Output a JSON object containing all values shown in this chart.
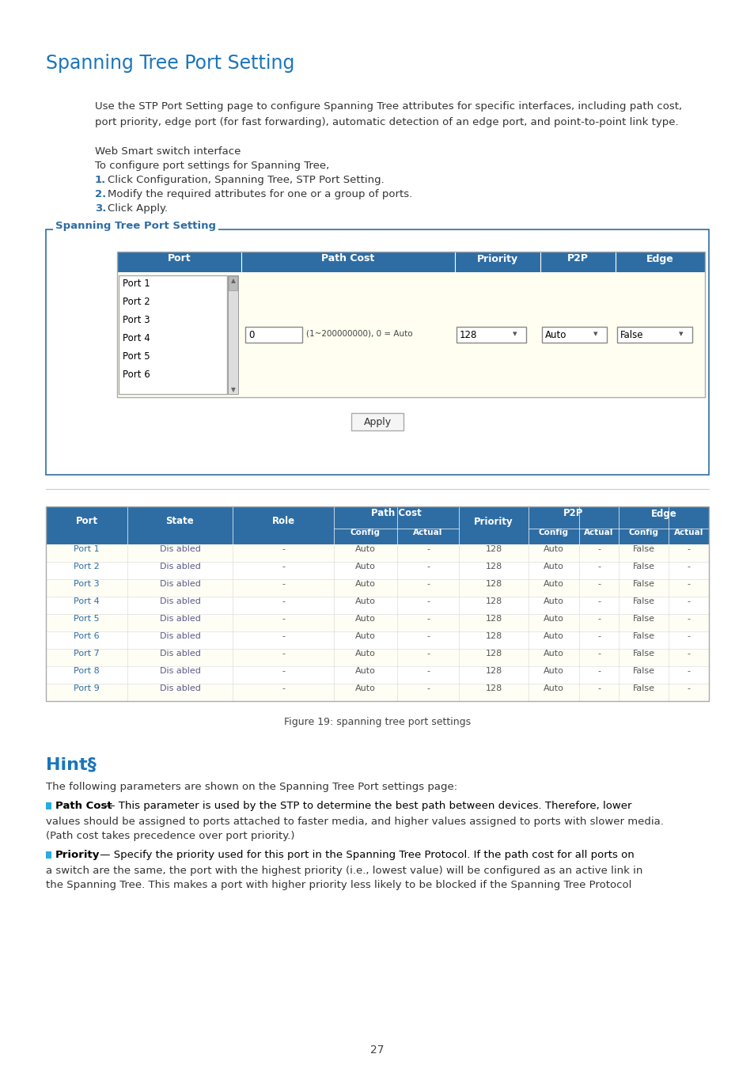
{
  "title": "Spanning Tree Port Setting",
  "hint_title": "Hint§",
  "bg_color": "#ffffff",
  "title_color": "#1a75bc",
  "hint_color": "#1a75bc",
  "blue_header": "#2e6da4",
  "text_color": "#333333",
  "blue_bullet": "#29abe2",
  "section_box_border": "#2e6da4",
  "section_box_label_color": "#2e6da4",
  "body_text_1": "Use the STP Port Setting page to configure Spanning Tree attributes for specific interfaces, including path cost,",
  "body_text_2": "port priority, edge port (for fast forwarding), automatic detection of an edge port, and point-to-point link type.",
  "body_text_3": "Web Smart switch interface",
  "body_text_4": "To configure port settings for Spanning Tree,",
  "step1": "Click Configuration, Spanning Tree, STP Port Setting.",
  "step2": "Modify the required attributes for one or a group of ports.",
  "step3": "Click Apply.",
  "figure_caption": "Figure 19: spanning tree port settings",
  "hint_para1": "The following parameters are shown on the Spanning Tree Port settings page:",
  "hint_path_cost_bold": "Path Cost",
  "hint_path_cost_text": " — This parameter is used by the STP to determine the best path between devices. Therefore, lower",
  "hint_path_cost_text2": "values should be assigned to ports attached to faster media, and higher values assigned to ports with slower media.",
  "hint_path_cost_text3": "(Path cost takes precedence over port priority.)",
  "hint_priority_bold": "Priority",
  "hint_priority_text": " — Specify the priority used for this port in the Spanning Tree Protocol. If the path cost for all ports on",
  "hint_priority_text2": "a switch are the same, the port with the highest priority (i.e., lowest value) will be configured as an active link in",
  "hint_priority_text3": "the Spanning Tree. This makes a port with higher priority less likely to be blocked if the Spanning Tree Protocol",
  "page_number": "27",
  "config_panel_label": "Spanning Tree Port Setting",
  "config_port_list": [
    "Port 1",
    "Port 2",
    "Port 3",
    "Port 4",
    "Port 5",
    "Port 6"
  ],
  "config_headers": [
    "Port",
    "Path Cost",
    "Priority",
    "P2P",
    "Edge"
  ],
  "config_path_cost_hint": "(1~200000000), 0 = Auto",
  "config_priority_val": "128",
  "config_p2p_val": "Auto",
  "config_edge_val": "False",
  "config_apply_btn": "Apply",
  "data_table_ports": [
    "Port 1",
    "Port 2",
    "Port 3",
    "Port 4",
    "Port 5",
    "Port 6",
    "Port 7",
    "Port 8",
    "Port 9"
  ],
  "data_table_states": [
    "Dis abled",
    "Dis abled",
    "Dis abled",
    "Dis abled",
    "Dis abled",
    "Dis abled",
    "Dis abled",
    "Dis abled",
    "Dis abled"
  ],
  "data_table_roles": [
    "-",
    "-",
    "-",
    "-",
    "-",
    "-",
    "-",
    "-",
    "-"
  ],
  "data_table_config": [
    "Auto",
    "Auto",
    "Auto",
    "Auto",
    "Auto",
    "Auto",
    "Auto",
    "Auto",
    "Auto"
  ],
  "data_table_actual": [
    "-",
    "-",
    "-",
    "-",
    "-",
    "-",
    "-",
    "-",
    "-"
  ],
  "data_table_priority": [
    "128",
    "128",
    "128",
    "128",
    "128",
    "128",
    "128",
    "128",
    "128"
  ],
  "data_table_p2p_config": [
    "Auto",
    "Auto",
    "Auto",
    "Auto",
    "Auto",
    "Auto",
    "Auto",
    "Auto",
    "Auto"
  ],
  "data_table_p2p_actual": [
    "-",
    "-",
    "-",
    "-",
    "-",
    "-",
    "-",
    "-",
    "-"
  ],
  "data_table_edge_config": [
    "False",
    "False",
    "False",
    "False",
    "False",
    "False",
    "False",
    "False",
    "False"
  ],
  "data_table_edge_actual": [
    "-",
    "-",
    "-",
    "-",
    "-",
    "-",
    "-",
    "-",
    "-"
  ]
}
